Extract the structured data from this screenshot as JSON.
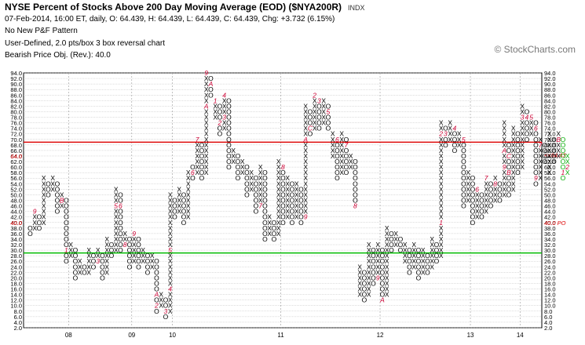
{
  "header": {
    "title": "NYSE Percent of Stocks Above 200 Day Moving Average (EOD) ($NYA200R)",
    "ticker_label": "INDX",
    "quote_line": "07-Feb-2014, 16:00 ET, daily, O: 64.439, H: 64.439, L: 64.439, C: 64.439, Chg: +3.732 (6.15%)",
    "pattern_line": "No New P&F Pattern",
    "settings_line": "User-Defined, 2.0 pts/box 3 box reversal chart",
    "objective_line": "Bearish Price Obj. (Rev.): 40.0"
  },
  "watermark": "© StockCharts.com",
  "colors": {
    "resistance": "#dd0000",
    "support": "#00bb00",
    "month_marker": "#cc0033",
    "recent_column": "#00aa00",
    "price_tag": "#dd0000",
    "grid": "#bbbbbb"
  },
  "chart_data": {
    "type": "point-and-figure",
    "box_size": 2.0,
    "reversal": 3,
    "ylim": [
      2.0,
      94.0
    ],
    "y_ticks": [
      "2.0",
      "4.0",
      "6.0",
      "8.0",
      "10.0",
      "12.0",
      "14.0",
      "16.0",
      "18.0",
      "20.0",
      "22.0",
      "24.0",
      "26.0",
      "28.0",
      "30.0",
      "32.0",
      "34.0",
      "36.0",
      "38.0",
      "40.0",
      "42.0",
      "44.0",
      "46.0",
      "48.0",
      "50.0",
      "52.0",
      "54.0",
      "56.0",
      "58.0",
      "60.0",
      "62.0",
      "64.0",
      "66.0",
      "68.0",
      "70.0",
      "72.0",
      "74.0",
      "76.0",
      "78.0",
      "80.0",
      "82.0",
      "84.0",
      "86.0",
      "88.0",
      "90.0",
      "92.0",
      "94.0"
    ],
    "x_labels": [
      {
        "label": "08",
        "column": 9
      },
      {
        "label": "09",
        "column": 23
      },
      {
        "label": "10",
        "column": 32
      },
      {
        "label": "11",
        "column": 56
      },
      {
        "label": "12",
        "column": 78
      },
      {
        "label": "13",
        "column": 98
      },
      {
        "label": "14",
        "column": 109
      }
    ],
    "horizontal_lines": [
      {
        "name": "resistance",
        "value": 69.0,
        "color": "#dd0000"
      },
      {
        "name": "support",
        "value": 29.0,
        "color": "#00bb00"
      }
    ],
    "price_tags": [
      {
        "text": "64.0",
        "value": 64.0,
        "side": "left"
      },
      {
        "text": "40.0",
        "value": 40.0,
        "side": "left"
      },
      {
        "text": "<<64.43",
        "value": 64.43,
        "side": "right"
      },
      {
        "text": "40.0 PO",
        "value": 40.0,
        "side": "right"
      }
    ],
    "columns": [
      {
        "t": "O",
        "lo": 36,
        "hi": 38
      },
      {
        "t": "X",
        "lo": 38,
        "hi": 44,
        "marks": [
          {
            "v": 44,
            "m": "9"
          }
        ]
      },
      {
        "t": "O",
        "lo": 38,
        "hi": 42
      },
      {
        "t": "X",
        "lo": 40,
        "hi": 56
      },
      {
        "t": "O",
        "lo": 50,
        "hi": 54
      },
      {
        "t": "X",
        "lo": 52,
        "hi": 56
      },
      {
        "t": "O",
        "lo": 44,
        "hi": 54
      },
      {
        "t": "X",
        "lo": 46,
        "hi": 50,
        "marks": [
          {
            "v": 48,
            "m": "B"
          }
        ]
      },
      {
        "t": "O",
        "lo": 26,
        "hi": 48,
        "marks": [
          {
            "v": 30,
            "m": "1"
          }
        ]
      },
      {
        "t": "X",
        "lo": 28,
        "hi": 32
      },
      {
        "t": "O",
        "lo": 20,
        "hi": 30
      },
      {
        "t": "X",
        "lo": 22,
        "hi": 26
      },
      {
        "t": "O",
        "lo": 22,
        "hi": 24
      },
      {
        "t": "X",
        "lo": 22,
        "hi": 30
      },
      {
        "t": "O",
        "lo": 24,
        "hi": 28
      },
      {
        "t": "X",
        "lo": 26,
        "hi": 30,
        "marks": [
          {
            "v": 26,
            "m": "3"
          }
        ]
      },
      {
        "t": "O",
        "lo": 20,
        "hi": 28
      },
      {
        "t": "X",
        "lo": 22,
        "hi": 34
      },
      {
        "t": "O",
        "lo": 28,
        "hi": 32
      },
      {
        "t": "X",
        "lo": 30,
        "hi": 52,
        "marks": [
          {
            "v": 46,
            "m": "5"
          }
        ]
      },
      {
        "t": "O",
        "lo": 30,
        "hi": 50,
        "marks": [
          {
            "v": 46,
            "m": "6"
          }
        ]
      },
      {
        "t": "X",
        "lo": 32,
        "hi": 36,
        "marks": [
          {
            "v": 32,
            "m": "8"
          }
        ]
      },
      {
        "t": "O",
        "lo": 24,
        "hi": 34
      },
      {
        "t": "X",
        "lo": 26,
        "hi": 36,
        "marks": [
          {
            "v": 36,
            "m": "9"
          }
        ]
      },
      {
        "t": "O",
        "lo": 24,
        "hi": 34
      },
      {
        "t": "X",
        "lo": 26,
        "hi": 30
      },
      {
        "t": "O",
        "lo": 22,
        "hi": 28
      },
      {
        "t": "X",
        "lo": 24,
        "hi": 28
      },
      {
        "t": "O",
        "lo": 8,
        "hi": 26,
        "marks": [
          {
            "v": 14,
            "m": "A"
          },
          {
            "v": 10,
            "m": "2"
          }
        ]
      },
      {
        "t": "X",
        "lo": 10,
        "hi": 14
      },
      {
        "t": "O",
        "lo": 6,
        "hi": 12,
        "marks": [
          {
            "v": 8,
            "m": "3"
          }
        ]
      },
      {
        "t": "X",
        "lo": 8,
        "hi": 50,
        "marks": [
          {
            "v": 16,
            "m": "4"
          },
          {
            "v": 30,
            "m": "5"
          }
        ]
      },
      {
        "t": "O",
        "lo": 42,
        "hi": 48
      },
      {
        "t": "X",
        "lo": 44,
        "hi": 52
      },
      {
        "t": "O",
        "lo": 40,
        "hi": 50
      },
      {
        "t": "X",
        "lo": 42,
        "hi": 58
      },
      {
        "t": "O",
        "lo": 56,
        "hi": 60,
        "marks": [
          {
            "v": 58,
            "m": "6"
          }
        ]
      },
      {
        "t": "X",
        "lo": 58,
        "hi": 70,
        "marks": [
          {
            "v": 70,
            "m": "7"
          }
        ]
      },
      {
        "t": "O",
        "lo": 56,
        "hi": 68
      },
      {
        "t": "X",
        "lo": 58,
        "hi": 94,
        "marks": [
          {
            "v": 94,
            "m": "9"
          },
          {
            "v": 82,
            "m": "A"
          }
        ]
      },
      {
        "t": "O",
        "lo": 86,
        "hi": 92,
        "marks": [
          {
            "v": 90,
            "m": "A"
          }
        ]
      },
      {
        "t": "X",
        "lo": 78,
        "hi": 84,
        "marks": [
          {
            "v": 84,
            "m": "1"
          }
        ]
      },
      {
        "t": "O",
        "lo": 72,
        "hi": 82,
        "marks": [
          {
            "v": 76,
            "m": "2"
          }
        ]
      },
      {
        "t": "X",
        "lo": 74,
        "hi": 86,
        "marks": [
          {
            "v": 86,
            "m": "4"
          },
          {
            "v": 78,
            "m": "3"
          }
        ]
      },
      {
        "t": "O",
        "lo": 60,
        "hi": 84
      },
      {
        "t": "X",
        "lo": 62,
        "hi": 66
      },
      {
        "t": "O",
        "lo": 56,
        "hi": 64
      },
      {
        "t": "X",
        "lo": 58,
        "hi": 62
      },
      {
        "t": "O",
        "lo": 50,
        "hi": 60
      },
      {
        "t": "X",
        "lo": 52,
        "hi": 58
      },
      {
        "t": "O",
        "lo": 44,
        "hi": 56
      },
      {
        "t": "X",
        "lo": 46,
        "hi": 60,
        "marks": [
          {
            "v": 46,
            "m": "7"
          }
        ]
      },
      {
        "t": "O",
        "lo": 34,
        "hi": 58
      },
      {
        "t": "X",
        "lo": 36,
        "hi": 42
      },
      {
        "t": "O",
        "lo": 34,
        "hi": 40
      },
      {
        "t": "X",
        "lo": 36,
        "hi": 62
      },
      {
        "t": "O",
        "lo": 40,
        "hi": 60,
        "marks": [
          {
            "v": 60,
            "m": "8"
          }
        ]
      },
      {
        "t": "X",
        "lo": 42,
        "hi": 56
      },
      {
        "t": "O",
        "lo": 40,
        "hi": 54
      },
      {
        "t": "X",
        "lo": 42,
        "hi": 54
      },
      {
        "t": "O",
        "lo": 40,
        "hi": 52
      },
      {
        "t": "X",
        "lo": 42,
        "hi": 82,
        "marks": [
          {
            "v": 70,
            "m": "A"
          },
          {
            "v": 42,
            "m": "9"
          }
        ]
      },
      {
        "t": "O",
        "lo": 72,
        "hi": 80,
        "marks": [
          {
            "v": 74,
            "m": "C"
          }
        ]
      },
      {
        "t": "X",
        "lo": 74,
        "hi": 86,
        "marks": [
          {
            "v": 86,
            "m": "2"
          }
        ]
      },
      {
        "t": "O",
        "lo": 74,
        "hi": 84,
        "marks": [
          {
            "v": 84,
            "m": "3"
          }
        ]
      },
      {
        "t": "X",
        "lo": 76,
        "hi": 84
      },
      {
        "t": "O",
        "lo": 74,
        "hi": 82,
        "marks": [
          {
            "v": 80,
            "m": "5"
          }
        ]
      },
      {
        "t": "X",
        "lo": 64,
        "hi": 72
      },
      {
        "t": "O",
        "lo": 56,
        "hi": 70,
        "marks": [
          {
            "v": 70,
            "m": "6"
          }
        ]
      },
      {
        "t": "X",
        "lo": 58,
        "hi": 72
      },
      {
        "t": "O",
        "lo": 58,
        "hi": 70,
        "marks": [
          {
            "v": 68,
            "m": "7"
          }
        ]
      },
      {
        "t": "X",
        "lo": 60,
        "hi": 64
      },
      {
        "t": "O",
        "lo": 46,
        "hi": 62,
        "marks": [
          {
            "v": 46,
            "m": "8"
          }
        ]
      },
      {
        "t": "X",
        "lo": 14,
        "hi": 24
      },
      {
        "t": "O",
        "lo": 12,
        "hi": 22
      },
      {
        "t": "X",
        "lo": 14,
        "hi": 32
      },
      {
        "t": "O",
        "lo": 18,
        "hi": 30
      },
      {
        "t": "X",
        "lo": 20,
        "hi": 32,
        "marks": [
          {
            "v": 20,
            "m": "9"
          }
        ]
      },
      {
        "t": "O",
        "lo": 12,
        "hi": 30,
        "marks": [
          {
            "v": 12,
            "m": "A"
          }
        ]
      },
      {
        "t": "X",
        "lo": 14,
        "hi": 38
      },
      {
        "t": "O",
        "lo": 30,
        "hi": 36
      },
      {
        "t": "X",
        "lo": 32,
        "hi": 36
      },
      {
        "t": "O",
        "lo": 30,
        "hi": 34
      },
      {
        "t": "X",
        "lo": 26,
        "hi": 32
      },
      {
        "t": "O",
        "lo": 22,
        "hi": 30
      },
      {
        "t": "X",
        "lo": 24,
        "hi": 32
      },
      {
        "t": "O",
        "lo": 20,
        "hi": 30
      },
      {
        "t": "X",
        "lo": 22,
        "hi": 30
      },
      {
        "t": "O",
        "lo": 22,
        "hi": 28
      },
      {
        "t": "X",
        "lo": 24,
        "hi": 34
      },
      {
        "t": "O",
        "lo": 26,
        "hi": 32
      },
      {
        "t": "X",
        "lo": 28,
        "hi": 76,
        "marks": [
          {
            "v": 72,
            "m": "2"
          },
          {
            "v": 40,
            "m": "1"
          }
        ]
      },
      {
        "t": "O",
        "lo": 68,
        "hi": 74,
        "marks": [
          {
            "v": 72,
            "m": "3"
          }
        ]
      },
      {
        "t": "X",
        "lo": 70,
        "hi": 76
      },
      {
        "t": "O",
        "lo": 66,
        "hi": 74,
        "marks": [
          {
            "v": 74,
            "m": "4"
          }
        ]
      },
      {
        "t": "X",
        "lo": 68,
        "hi": 72
      },
      {
        "t": "O",
        "lo": 46,
        "hi": 70,
        "marks": [
          {
            "v": 70,
            "m": "5"
          }
        ]
      },
      {
        "t": "X",
        "lo": 48,
        "hi": 58
      },
      {
        "t": "O",
        "lo": 40,
        "hi": 56
      },
      {
        "t": "X",
        "lo": 42,
        "hi": 52,
        "marks": [
          {
            "v": 52,
            "m": "6"
          }
        ]
      },
      {
        "t": "O",
        "lo": 42,
        "hi": 50
      },
      {
        "t": "X",
        "lo": 44,
        "hi": 56,
        "marks": [
          {
            "v": 56,
            "m": "7"
          }
        ]
      },
      {
        "t": "O",
        "lo": 46,
        "hi": 54
      },
      {
        "t": "X",
        "lo": 48,
        "hi": 56,
        "marks": [
          {
            "v": 54,
            "m": "8"
          }
        ]
      },
      {
        "t": "O",
        "lo": 48,
        "hi": 54
      },
      {
        "t": "X",
        "lo": 50,
        "hi": 76,
        "marks": [
          {
            "v": 66,
            "m": "A"
          },
          {
            "v": 60,
            "m": "9"
          }
        ]
      },
      {
        "t": "O",
        "lo": 50,
        "hi": 68,
        "marks": [
          {
            "v": 64,
            "m": "C"
          },
          {
            "v": 58,
            "m": "B"
          }
        ]
      },
      {
        "t": "X",
        "lo": 52,
        "hi": 74
      },
      {
        "t": "O",
        "lo": 58,
        "hi": 72
      },
      {
        "t": "X",
        "lo": 60,
        "hi": 82,
        "marks": [
          {
            "v": 78,
            "m": "3"
          }
        ]
      },
      {
        "t": "O",
        "lo": 70,
        "hi": 80,
        "marks": [
          {
            "v": 78,
            "m": "4"
          }
        ]
      },
      {
        "t": "X",
        "lo": 72,
        "hi": 78,
        "marks": [
          {
            "v": 78,
            "m": "5"
          }
        ]
      },
      {
        "t": "O",
        "lo": 54,
        "hi": 76,
        "marks": [
          {
            "v": 74,
            "m": "6"
          },
          {
            "v": 56,
            "m": "9"
          }
        ]
      },
      {
        "t": "X",
        "lo": 56,
        "hi": 70,
        "marks": [
          {
            "v": 68,
            "m": "7"
          }
        ]
      },
      {
        "t": "O",
        "lo": 62,
        "hi": 68
      },
      {
        "t": "X",
        "lo": 58,
        "hi": 72
      },
      {
        "t": "O",
        "lo": 62,
        "hi": 70
      },
      {
        "t": "X",
        "lo": 64,
        "hi": 72,
        "marks": [
          {
            "v": 70,
            "m": "B"
          }
        ]
      },
      {
        "t": "O",
        "lo": 56,
        "hi": 70,
        "marks": [
          {
            "v": 58,
            "m": "1"
          }
        ]
      },
      {
        "t": "X",
        "lo": 58,
        "hi": 64,
        "marks": [
          {
            "v": 60,
            "m": "2"
          }
        ]
      }
    ]
  }
}
